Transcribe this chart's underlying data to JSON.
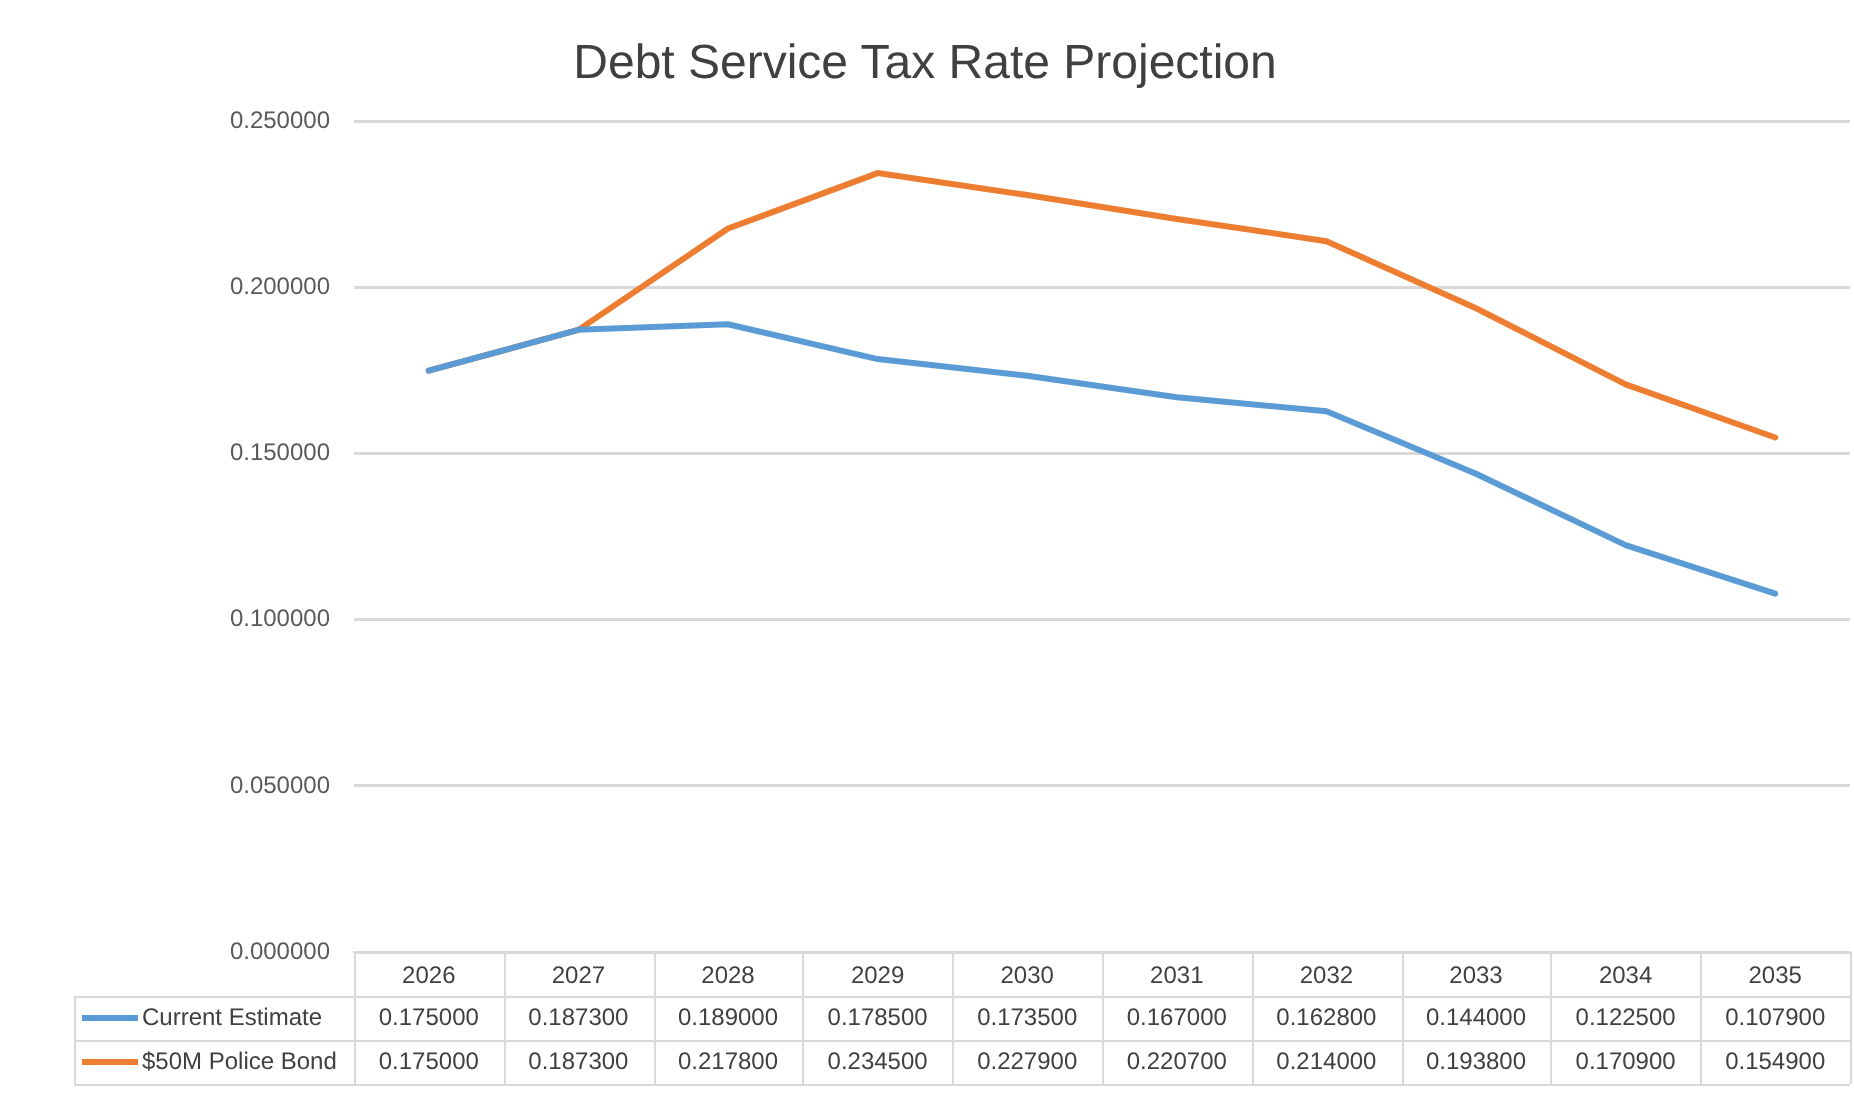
{
  "chart_data": {
    "type": "line",
    "title": "Debt Service Tax Rate Projection",
    "categories": [
      "2026",
      "2027",
      "2028",
      "2029",
      "2030",
      "2031",
      "2032",
      "2033",
      "2034",
      "2035"
    ],
    "series": [
      {
        "name": "Current Estimate",
        "color": "#5b9bd5",
        "values": [
          0.175,
          0.1873,
          0.189,
          0.1785,
          0.1735,
          0.167,
          0.1628,
          0.144,
          0.1225,
          0.1079
        ],
        "value_labels": [
          "0.175000",
          "0.187300",
          "0.189000",
          "0.178500",
          "0.173500",
          "0.167000",
          "0.162800",
          "0.144000",
          "0.122500",
          "0.107900"
        ]
      },
      {
        "name": "$50M Police Bond",
        "color": "#ed7d31",
        "values": [
          0.175,
          0.1873,
          0.2178,
          0.2345,
          0.2279,
          0.2207,
          0.214,
          0.1938,
          0.1709,
          0.1549
        ],
        "value_labels": [
          "0.175000",
          "0.187300",
          "0.217800",
          "0.234500",
          "0.227900",
          "0.220700",
          "0.214000",
          "0.193800",
          "0.170900",
          "0.154900"
        ]
      }
    ],
    "ylim": [
      0,
      0.25
    ],
    "yticks": [
      {
        "value": 0,
        "label": "0.000000"
      },
      {
        "value": 0.05,
        "label": "0.050000"
      },
      {
        "value": 0.1,
        "label": "0.100000"
      },
      {
        "value": 0.15,
        "label": "0.150000"
      },
      {
        "value": 0.2,
        "label": "0.200000"
      },
      {
        "value": 0.25,
        "label": "0.250000"
      }
    ],
    "grid": "y",
    "legend": "bottom",
    "marker": "none",
    "line_style": "solid"
  }
}
